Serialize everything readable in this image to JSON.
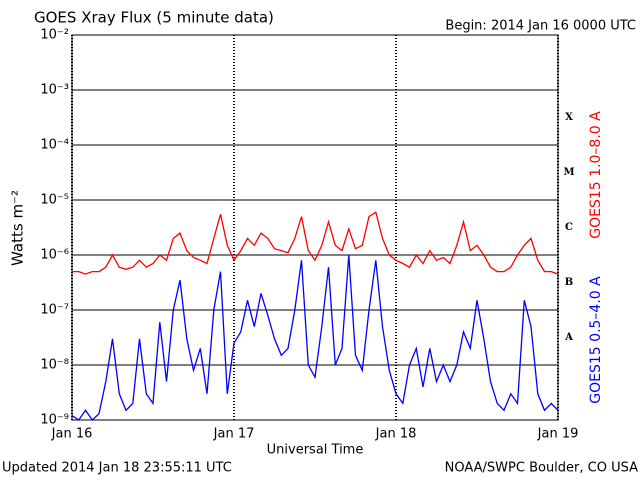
{
  "chart_data": {
    "type": "line",
    "title": "GOES Xray Flux (5 minute data)",
    "subtitle": "Begin:  2014 Jan 16 0000 UTC",
    "xlabel": "Universal Time",
    "ylabel": "Watts m⁻²",
    "footer_left": "Updated 2014 Jan 18 23:55:11 UTC",
    "footer_right": "NOAA/SWPC Boulder, CO USA",
    "flare_classes": [
      "A",
      "B",
      "C",
      "M",
      "X"
    ],
    "log_scale": true,
    "grid": true,
    "xlim": [
      0,
      72
    ],
    "xticks": [
      {
        "value": 0,
        "label": "Jan 16"
      },
      {
        "value": 24,
        "label": "Jan 17"
      },
      {
        "value": 48,
        "label": "Jan 18"
      },
      {
        "value": 72,
        "label": "Jan 19"
      }
    ],
    "ylim": [
      1e-09,
      0.01
    ],
    "yticks": [
      {
        "value": 1e-09,
        "label": "10⁻⁹"
      },
      {
        "value": 1e-08,
        "label": "10⁻⁸"
      },
      {
        "value": 1e-07,
        "label": "10⁻⁷"
      },
      {
        "value": 1e-06,
        "label": "10⁻⁶"
      },
      {
        "value": 1e-05,
        "label": "10⁻⁵"
      },
      {
        "value": 0.0001,
        "label": "10⁻⁴"
      },
      {
        "value": 0.001,
        "label": "10⁻³"
      },
      {
        "value": 0.01,
        "label": "10⁻²"
      }
    ],
    "x": [
      0,
      1,
      2,
      3,
      4,
      5,
      6,
      7,
      8,
      9,
      10,
      11,
      12,
      13,
      14,
      15,
      16,
      17,
      18,
      19,
      20,
      21,
      22,
      23,
      24,
      25,
      26,
      27,
      28,
      29,
      30,
      31,
      32,
      33,
      34,
      35,
      36,
      37,
      38,
      39,
      40,
      41,
      42,
      43,
      44,
      45,
      46,
      47,
      48,
      49,
      50,
      51,
      52,
      53,
      54,
      55,
      56,
      57,
      58,
      59,
      60,
      61,
      62,
      63,
      64,
      65,
      66,
      67,
      68,
      69,
      70,
      71,
      72
    ],
    "series": [
      {
        "name": "GOES15 1.0–8.0 A",
        "color": "#ff0000",
        "values": [
          5e-07,
          5e-07,
          4.5e-07,
          5e-07,
          5e-07,
          6e-07,
          1e-06,
          6e-07,
          5.5e-07,
          6e-07,
          8e-07,
          6e-07,
          7e-07,
          1e-06,
          8e-07,
          2e-06,
          2.5e-06,
          1.2e-06,
          9e-07,
          8e-07,
          7e-07,
          2e-06,
          5.5e-06,
          1.5e-06,
          8e-07,
          1.2e-06,
          2e-06,
          1.5e-06,
          2.5e-06,
          2e-06,
          1.3e-06,
          1.2e-06,
          1.1e-06,
          2e-06,
          5e-06,
          1.2e-06,
          8e-07,
          1.5e-06,
          4e-06,
          1.5e-06,
          1.2e-06,
          3e-06,
          1.3e-06,
          1.5e-06,
          5e-06,
          6e-06,
          2e-06,
          1e-06,
          8e-07,
          7e-07,
          6e-07,
          1e-06,
          7e-07,
          1.2e-06,
          8e-07,
          9e-07,
          7e-07,
          1.5e-06,
          4e-06,
          1.2e-06,
          1.5e-06,
          1e-06,
          6e-07,
          5e-07,
          5e-07,
          6e-07,
          1e-06,
          1.5e-06,
          2e-06,
          8e-07,
          5e-07,
          5e-07,
          4.5e-07
        ]
      },
      {
        "name": "GOES15 0.5–4.0 A",
        "color": "#0000ff",
        "values": [
          1.2e-09,
          1e-09,
          1.5e-09,
          1e-09,
          1.3e-09,
          5e-09,
          3e-08,
          3e-09,
          1.5e-09,
          2e-09,
          3e-08,
          3e-09,
          2e-09,
          6e-08,
          5e-09,
          1e-07,
          3.5e-07,
          3e-08,
          8e-09,
          2e-08,
          3e-09,
          1e-07,
          5e-07,
          3e-09,
          2.5e-08,
          4e-08,
          1.5e-07,
          5e-08,
          2e-07,
          8e-08,
          3e-08,
          1.5e-08,
          2e-08,
          1e-07,
          8e-07,
          1e-08,
          6e-09,
          5e-08,
          6e-07,
          1e-08,
          2e-08,
          1e-06,
          1.5e-08,
          8e-09,
          1e-07,
          8e-07,
          5e-08,
          8e-09,
          3e-09,
          2e-09,
          1e-08,
          2e-08,
          4e-09,
          2e-08,
          5e-09,
          1e-08,
          5e-09,
          1e-08,
          4e-08,
          2e-08,
          1.5e-07,
          3e-08,
          5e-09,
          2e-09,
          1.5e-09,
          3e-09,
          2e-09,
          1.5e-07,
          5e-08,
          3e-09,
          1.5e-09,
          2e-09,
          1.5e-09
        ]
      }
    ]
  }
}
